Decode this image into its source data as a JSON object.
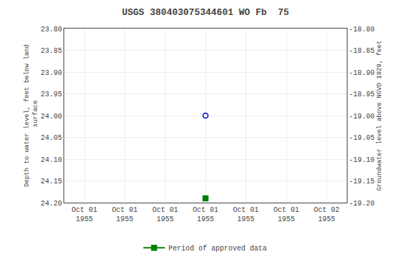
{
  "chart_data": {
    "type": "scatter",
    "title": "USGS 380403075344601 WO Fb  75",
    "y_label": "Depth to water level, feet below land\n surface",
    "y2_label": "Groundwater level above NGVD 1929, feet",
    "categories": [
      "Oct 01\n1955",
      "Oct 01\n1955",
      "Oct 01\n1955",
      "Oct 01\n1955",
      "Oct 01\n1955",
      "Oct 01\n1955",
      "Oct 02\n1955"
    ],
    "series": [
      {
        "color": "#0000cc",
        "marker": "circle-open",
        "values": [
          null,
          null,
          null,
          24.0,
          null,
          null,
          null
        ]
      },
      {
        "name": "Period of approved data",
        "color": "#008000",
        "marker": "square",
        "line_style": "solid",
        "values": [
          null,
          null,
          null,
          24.19,
          null,
          null,
          null
        ]
      }
    ],
    "ylim": [
      24.2,
      23.8
    ],
    "yticks": [
      {
        "value": 23.8,
        "label": "23.80"
      },
      {
        "value": 23.85,
        "label": "23.85"
      },
      {
        "value": 23.9,
        "label": "23.90"
      },
      {
        "value": 23.95,
        "label": "23.95"
      },
      {
        "value": 24.0,
        "label": "24.00"
      },
      {
        "value": 24.05,
        "label": "24.05"
      },
      {
        "value": 24.1,
        "label": "24.10"
      },
      {
        "value": 24.15,
        "label": "24.15"
      },
      {
        "value": 24.2,
        "label": "24.20"
      }
    ],
    "y2lim": [
      -19.2,
      -18.8
    ],
    "y2ticks": [
      {
        "value": -18.8,
        "label": "-18.80"
      },
      {
        "value": -18.85,
        "label": "-18.85"
      },
      {
        "value": -18.9,
        "label": "-18.90"
      },
      {
        "value": -18.95,
        "label": "-18.95"
      },
      {
        "value": -19.0,
        "label": "-19.00"
      },
      {
        "value": -19.05,
        "label": "-19.05"
      },
      {
        "value": -19.1,
        "label": "-19.10"
      },
      {
        "value": -19.15,
        "label": "-19.15"
      },
      {
        "value": -19.2,
        "label": "-19.20"
      }
    ],
    "grid": true,
    "legend": "bottom"
  }
}
